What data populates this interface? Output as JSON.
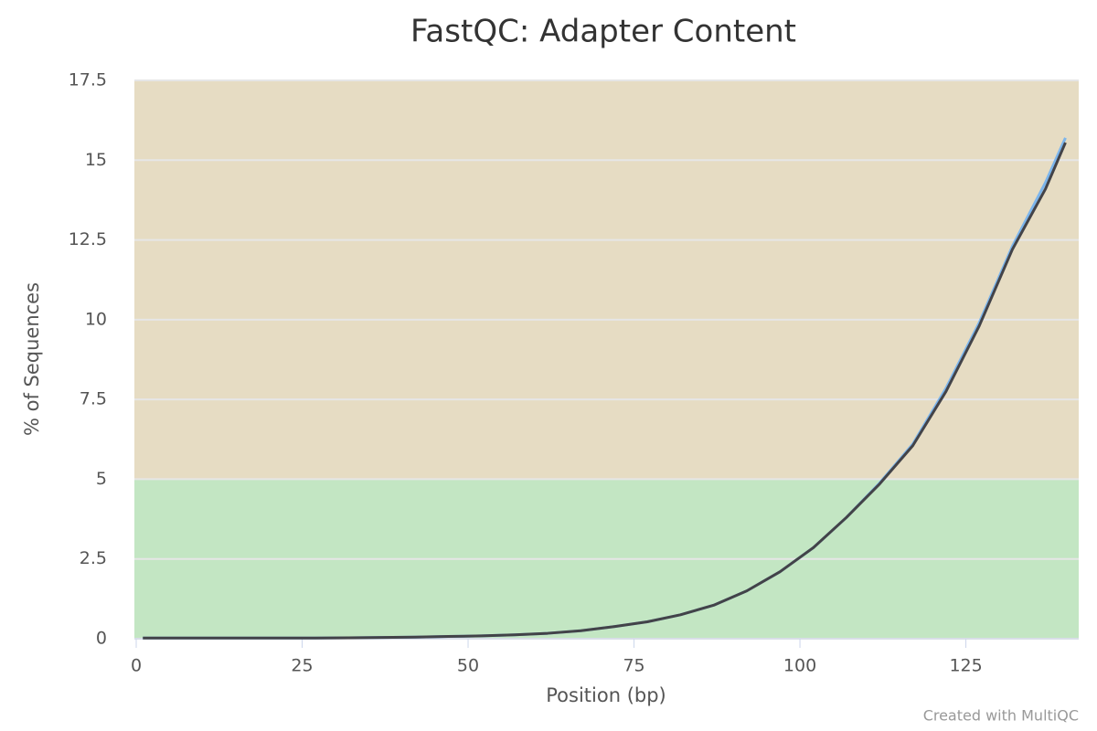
{
  "chart_data": {
    "type": "line",
    "title": "FastQC: Adapter Content",
    "x_label": "Position (bp)",
    "y_label": "% of Sequences",
    "credits": "Created with MultiQC",
    "x": [
      1,
      7,
      12,
      17,
      22,
      27,
      32,
      37,
      42,
      47,
      52,
      57,
      62,
      67,
      72,
      77,
      82,
      87,
      92,
      97,
      102,
      107,
      112,
      117,
      122,
      127,
      132,
      137,
      140
    ],
    "series": [
      {
        "color": "#7cb5ec",
        "values": [
          0.02,
          0.02,
          0.02,
          0.02,
          0.02,
          0.02,
          0.03,
          0.04,
          0.05,
          0.07,
          0.09,
          0.12,
          0.17,
          0.25,
          0.38,
          0.53,
          0.75,
          1.05,
          1.5,
          2.1,
          2.85,
          3.8,
          4.88,
          6.1,
          7.85,
          9.9,
          12.3,
          14.3,
          15.7
        ]
      },
      {
        "color": "#434348",
        "values": [
          0.02,
          0.02,
          0.02,
          0.02,
          0.02,
          0.02,
          0.03,
          0.04,
          0.05,
          0.07,
          0.09,
          0.12,
          0.17,
          0.25,
          0.38,
          0.53,
          0.75,
          1.05,
          1.5,
          2.1,
          2.85,
          3.8,
          4.85,
          6.05,
          7.75,
          9.8,
          12.2,
          14.1,
          15.55
        ]
      }
    ],
    "xlim": [
      0,
      142
    ],
    "xticks": [
      0,
      25,
      50,
      75,
      100,
      125
    ],
    "ylim": [
      0,
      17.5
    ],
    "yticks": [
      0,
      2.5,
      5,
      7.5,
      10,
      12.5,
      15,
      17.5
    ],
    "grid": true,
    "bands": [
      {
        "from": 0,
        "to": 5,
        "color": "#c3e6c3"
      },
      {
        "from": 5,
        "to": 17.5,
        "color": "#e6dcc3"
      }
    ]
  }
}
